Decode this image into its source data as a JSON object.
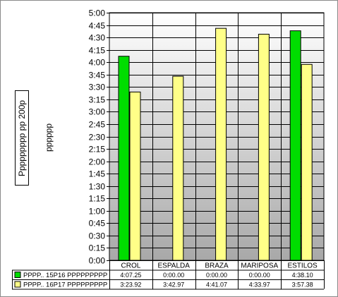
{
  "chart_data": {
    "type": "bar",
    "ylabel": "Ppppppppp pp 200p",
    "ysublabel": "pppppp",
    "categories": [
      "CROL",
      "ESPALDA",
      "BRAZA",
      "MARIPOSA",
      "ESTILOS"
    ],
    "yticks": [
      "0:00",
      "0:15",
      "0:30",
      "0:45",
      "1:00",
      "1:15",
      "1:30",
      "1:45",
      "2:00",
      "2:15",
      "2:30",
      "2:45",
      "3:00",
      "3:15",
      "3:30",
      "3:45",
      "4:00",
      "4:15",
      "4:30",
      "4:45",
      "5:00"
    ],
    "ylim": [
      0,
      300
    ],
    "yunit": "seconds",
    "grid": true,
    "legend": "table-below",
    "series": [
      {
        "name": "PPPP.. 15P16 PPPPPPPPP",
        "color": "#00dd00",
        "values": [
          247.25,
          0,
          0,
          0,
          278.1
        ],
        "labels": [
          "4:07.25",
          "0:00.00",
          "0:00.00",
          "0:00.00",
          "4:38.10"
        ]
      },
      {
        "name": "PPPP.. 16P17 PPPPPPPPP",
        "color": "#ffff88",
        "values": [
          203.92,
          222.97,
          281.07,
          273.97,
          237.38
        ],
        "labels": [
          "3:23.92",
          "3:42.97",
          "4:41.07",
          "4:33.97",
          "3:57.38"
        ]
      }
    ]
  }
}
